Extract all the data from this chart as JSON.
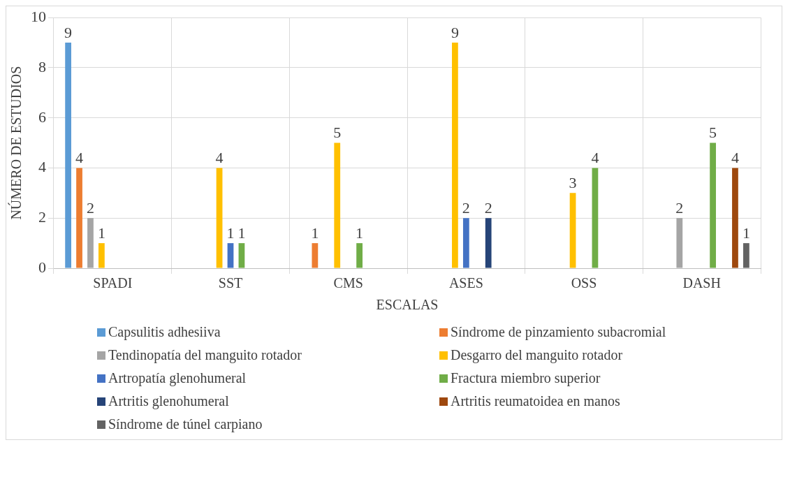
{
  "chart_data": {
    "type": "bar",
    "xlabel": "ESCALAS",
    "ylabel": "NÚMERO DE ESTUDIOS",
    "categories": [
      "SPADI",
      "SST",
      "CMS",
      "ASES",
      "OSS",
      "DASH"
    ],
    "series": [
      {
        "name": "Capsulitis adhesiiva",
        "color": "#5b9bd5",
        "values": [
          9,
          null,
          null,
          null,
          null,
          null
        ]
      },
      {
        "name": "Síndrome de pinzamiento subacromial",
        "color": "#ed7d31",
        "values": [
          4,
          null,
          1,
          null,
          null,
          null
        ]
      },
      {
        "name": "Tendinopatía del manguito rotador",
        "color": "#a5a5a5",
        "values": [
          2,
          null,
          null,
          null,
          null,
          2
        ]
      },
      {
        "name": "Desgarro del manguito rotador",
        "color": "#ffc000",
        "values": [
          1,
          4,
          5,
          9,
          3,
          null
        ]
      },
      {
        "name": "Artropatía glenohumeral",
        "color": "#4472c4",
        "values": [
          null,
          1,
          null,
          2,
          null,
          null
        ]
      },
      {
        "name": "Fractura miembro superior",
        "color": "#70ad47",
        "values": [
          null,
          1,
          1,
          null,
          4,
          5
        ]
      },
      {
        "name": "Artritis glenohumeral",
        "color": "#264478",
        "values": [
          null,
          null,
          null,
          2,
          null,
          null
        ]
      },
      {
        "name": "Artritis reumatoidea en manos",
        "color": "#9e480e",
        "values": [
          null,
          null,
          null,
          null,
          null,
          4
        ]
      },
      {
        "name": "Síndrome de túnel carpiano",
        "color": "#636363",
        "values": [
          null,
          null,
          null,
          null,
          null,
          1
        ]
      }
    ],
    "ylim": [
      0,
      10
    ],
    "yticks": [
      0,
      2,
      4,
      6,
      8,
      10
    ],
    "grid": true,
    "data_labels": true,
    "legend": "bottom"
  }
}
